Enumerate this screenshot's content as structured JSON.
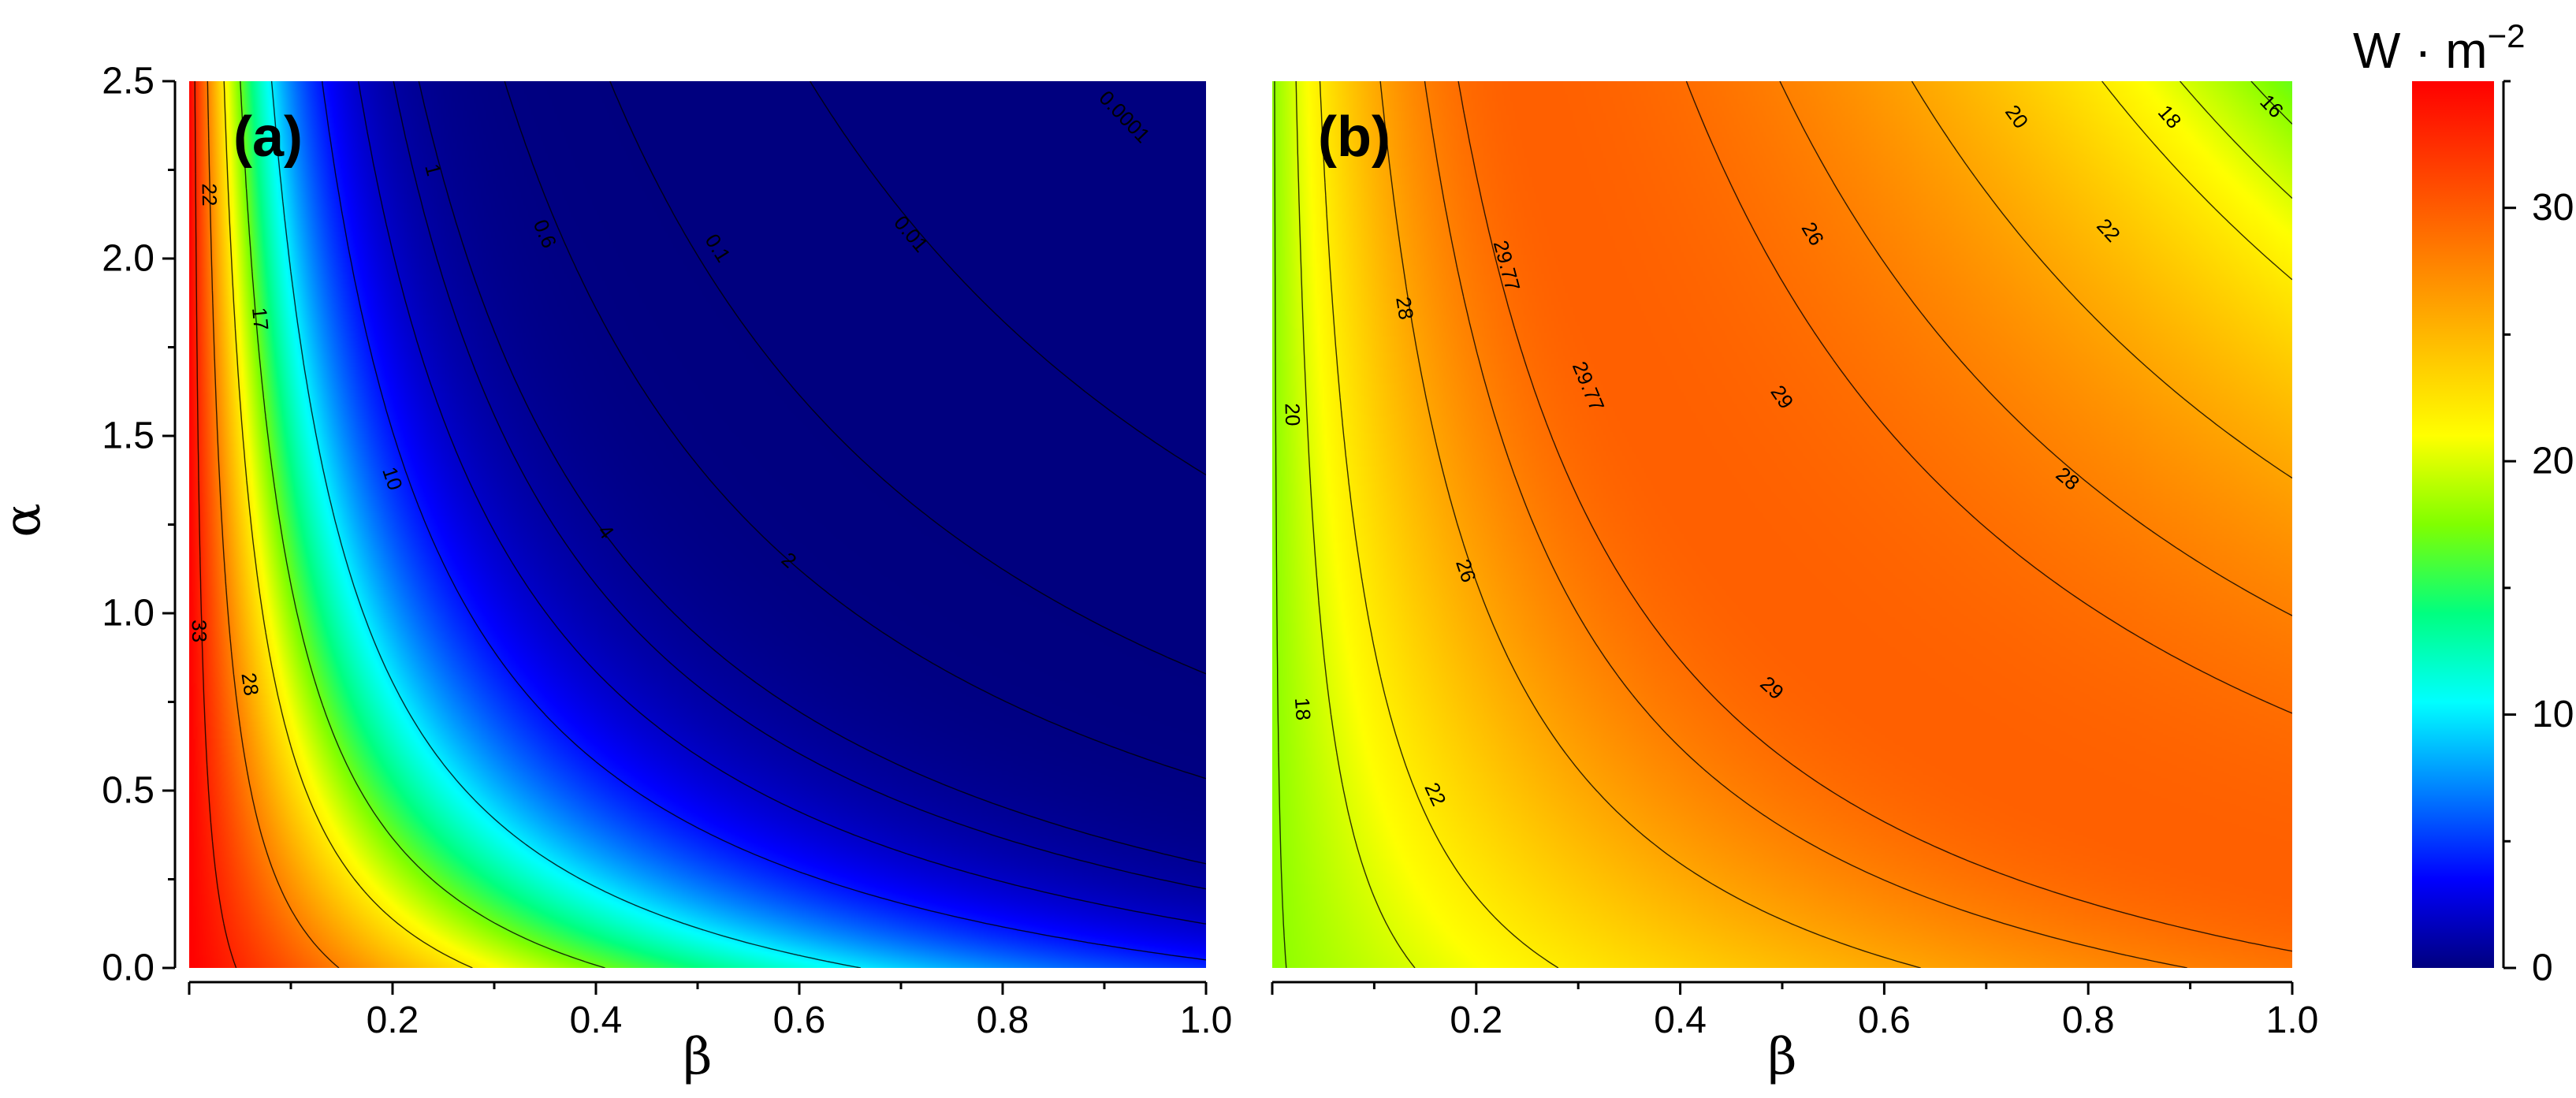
{
  "colors": {
    "colormap": [
      "#00007f",
      "#0000ff",
      "#0080ff",
      "#00ffff",
      "#00ff80",
      "#80ff00",
      "#ffff00",
      "#ffc000",
      "#ff8000",
      "#ff4000",
      "#ff0000"
    ],
    "contour_line": "#000000",
    "axis": "#000000"
  },
  "colorbar": {
    "title": "W · m",
    "title_exp": "−2",
    "range": [
      0,
      35
    ],
    "ticks": [
      "0",
      "10",
      "20",
      "30"
    ]
  },
  "chart_data": [
    {
      "type": "heatmap",
      "panel_label": "(a)",
      "xlabel": "β",
      "ylabel": "α",
      "xlim": [
        0,
        1
      ],
      "ylim": [
        0,
        2.5
      ],
      "xticks": [
        "0.2",
        "0.4",
        "0.6",
        "0.8",
        "1.0"
      ],
      "yticks": [
        "0.0",
        "0.5",
        "1.0",
        "1.5",
        "2.0",
        "2.5"
      ],
      "contour_levels": [
        0.0001,
        0.01,
        0.1,
        0.6,
        1,
        2,
        4,
        10,
        17,
        22,
        28,
        33
      ],
      "contour_labels": [
        {
          "text": "33",
          "beta": 0.01,
          "alpha": 0.95
        },
        {
          "text": "28",
          "beta": 0.06,
          "alpha": 0.8
        },
        {
          "text": "22",
          "beta": 0.02,
          "alpha": 2.18
        },
        {
          "text": "17",
          "beta": 0.07,
          "alpha": 1.83
        },
        {
          "text": "10",
          "beta": 0.2,
          "alpha": 1.38
        },
        {
          "text": "4",
          "beta": 0.41,
          "alpha": 1.23
        },
        {
          "text": "2",
          "beta": 0.59,
          "alpha": 1.15
        },
        {
          "text": "1",
          "beta": 0.24,
          "alpha": 2.25
        },
        {
          "text": "0.6",
          "beta": 0.35,
          "alpha": 2.07
        },
        {
          "text": "0.1",
          "beta": 0.52,
          "alpha": 2.03
        },
        {
          "text": "0.01",
          "beta": 0.71,
          "alpha": 2.07
        },
        {
          "text": "0.0001",
          "beta": 0.92,
          "alpha": 2.4
        }
      ]
    },
    {
      "type": "heatmap",
      "panel_label": "(b)",
      "xlabel": "β",
      "ylabel": "",
      "xlim": [
        0,
        1
      ],
      "ylim": [
        0,
        2.5
      ],
      "xticks": [
        "0.2",
        "0.4",
        "0.6",
        "0.8",
        "1.0"
      ],
      "yticks": [],
      "contour_levels": [
        16,
        18,
        20,
        22,
        26,
        28,
        29,
        29.77
      ],
      "contour_labels": [
        {
          "text": "16",
          "beta": 0.98,
          "alpha": 2.43
        },
        {
          "text": "18",
          "beta": 0.88,
          "alpha": 2.4
        },
        {
          "text": "20",
          "beta": 0.73,
          "alpha": 2.4
        },
        {
          "text": "22",
          "beta": 0.82,
          "alpha": 2.08
        },
        {
          "text": "26",
          "beta": 0.53,
          "alpha": 2.07
        },
        {
          "text": "28",
          "beta": 0.78,
          "alpha": 1.38
        },
        {
          "text": "29",
          "beta": 0.5,
          "alpha": 1.61
        },
        {
          "text": "29.77",
          "beta": 0.23,
          "alpha": 1.98
        },
        {
          "text": "29.77",
          "beta": 0.31,
          "alpha": 1.64
        },
        {
          "text": "28",
          "beta": 0.13,
          "alpha": 1.86
        },
        {
          "text": "26",
          "beta": 0.19,
          "alpha": 1.12
        },
        {
          "text": "29",
          "beta": 0.49,
          "alpha": 0.79
        },
        {
          "text": "22",
          "beta": 0.16,
          "alpha": 0.49
        },
        {
          "text": "20",
          "beta": 0.02,
          "alpha": 1.56
        },
        {
          "text": "18",
          "beta": 0.03,
          "alpha": 0.73
        }
      ]
    }
  ]
}
